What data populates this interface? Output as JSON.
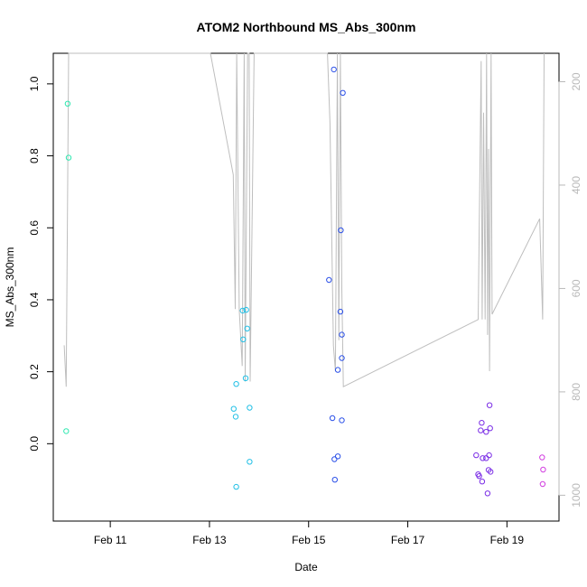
{
  "chart_data": {
    "type": "scatter",
    "title": "ATOM2 Northbound MS_Abs_300nm",
    "xlabel": "Date",
    "ylabel": "MS_Abs_300nm",
    "x_unit": "days in February",
    "xlim": [
      9.85,
      20.05
    ],
    "ylim": [
      -0.215,
      1.085
    ],
    "y2lim": [
      1050,
      145
    ],
    "x_ticks": [
      11,
      13,
      15,
      17,
      19
    ],
    "x_tick_labels": [
      "Feb 11",
      "Feb 13",
      "Feb 15",
      "Feb 17",
      "Feb 19"
    ],
    "y_ticks": [
      0.0,
      0.2,
      0.4,
      0.6,
      0.8,
      1.0
    ],
    "y_tick_labels": [
      "0.0",
      "0.2",
      "0.4",
      "0.6",
      "0.8",
      "1.0"
    ],
    "y2_ticks": [
      200,
      400,
      600,
      800,
      1000
    ],
    "y2_tick_labels": [
      "200",
      "400",
      "600",
      "800",
      "1000"
    ],
    "grid": false,
    "points": [
      {
        "x": 10.14,
        "y": 0.945,
        "color": "#2ee8b0"
      },
      {
        "x": 10.16,
        "y": 0.795,
        "color": "#2ee8b0"
      },
      {
        "x": 10.11,
        "y": 0.035,
        "color": "#2ee8b0"
      },
      {
        "x": 13.67,
        "y": 0.37,
        "color": "#22c0e6"
      },
      {
        "x": 13.74,
        "y": 0.372,
        "color": "#22c0e6"
      },
      {
        "x": 13.76,
        "y": 0.32,
        "color": "#22c0e6"
      },
      {
        "x": 13.68,
        "y": 0.29,
        "color": "#22c0e6"
      },
      {
        "x": 13.73,
        "y": 0.182,
        "color": "#22c0e6"
      },
      {
        "x": 13.54,
        "y": 0.166,
        "color": "#22c0e6"
      },
      {
        "x": 13.49,
        "y": 0.097,
        "color": "#22c0e6"
      },
      {
        "x": 13.81,
        "y": 0.1,
        "color": "#22c0e6"
      },
      {
        "x": 13.53,
        "y": 0.075,
        "color": "#22c0e6"
      },
      {
        "x": 13.81,
        "y": -0.05,
        "color": "#22c0e6"
      },
      {
        "x": 13.54,
        "y": -0.12,
        "color": "#22c0e6"
      },
      {
        "x": 15.51,
        "y": 1.04,
        "color": "#2b50e8"
      },
      {
        "x": 15.69,
        "y": 0.975,
        "color": "#2b50e8"
      },
      {
        "x": 15.65,
        "y": 0.593,
        "color": "#2b50e8"
      },
      {
        "x": 15.41,
        "y": 0.455,
        "color": "#2b50e8"
      },
      {
        "x": 15.64,
        "y": 0.367,
        "color": "#2b50e8"
      },
      {
        "x": 15.67,
        "y": 0.303,
        "color": "#2b50e8"
      },
      {
        "x": 15.67,
        "y": 0.238,
        "color": "#2b50e8"
      },
      {
        "x": 15.59,
        "y": 0.205,
        "color": "#2b50e8"
      },
      {
        "x": 15.48,
        "y": 0.071,
        "color": "#2b50e8"
      },
      {
        "x": 15.67,
        "y": 0.065,
        "color": "#2b50e8"
      },
      {
        "x": 15.59,
        "y": -0.035,
        "color": "#2b50e8"
      },
      {
        "x": 15.52,
        "y": -0.043,
        "color": "#2b50e8"
      },
      {
        "x": 15.53,
        "y": -0.1,
        "color": "#2b50e8"
      },
      {
        "x": 18.65,
        "y": 0.107,
        "color": "#7b2ee6"
      },
      {
        "x": 18.49,
        "y": 0.058,
        "color": "#7b2ee6"
      },
      {
        "x": 18.66,
        "y": 0.043,
        "color": "#7b2ee6"
      },
      {
        "x": 18.47,
        "y": 0.037,
        "color": "#7b2ee6"
      },
      {
        "x": 18.58,
        "y": 0.033,
        "color": "#7b2ee6"
      },
      {
        "x": 18.38,
        "y": -0.032,
        "color": "#7b2ee6"
      },
      {
        "x": 18.64,
        "y": -0.032,
        "color": "#7b2ee6"
      },
      {
        "x": 18.51,
        "y": -0.04,
        "color": "#7b2ee6"
      },
      {
        "x": 18.58,
        "y": -0.04,
        "color": "#7b2ee6"
      },
      {
        "x": 18.63,
        "y": -0.073,
        "color": "#7b2ee6"
      },
      {
        "x": 18.67,
        "y": -0.078,
        "color": "#7b2ee6"
      },
      {
        "x": 18.42,
        "y": -0.085,
        "color": "#7b2ee6"
      },
      {
        "x": 18.44,
        "y": -0.09,
        "color": "#7b2ee6"
      },
      {
        "x": 18.5,
        "y": -0.105,
        "color": "#7b2ee6"
      },
      {
        "x": 18.61,
        "y": -0.138,
        "color": "#7b2ee6"
      },
      {
        "x": 19.71,
        "y": -0.038,
        "color": "#d23ee0"
      },
      {
        "x": 19.73,
        "y": -0.072,
        "color": "#d23ee0"
      },
      {
        "x": 19.72,
        "y": -0.112,
        "color": "#d23ee0"
      }
    ],
    "line": {
      "color": "#bebebe",
      "points": [
        [
          10.07,
          710
        ],
        [
          10.11,
          790
        ],
        [
          10.16,
          145
        ],
        [
          10.2,
          140
        ],
        [
          10.5,
          140
        ],
        [
          11.0,
          140
        ],
        [
          12.0,
          140
        ],
        [
          13.02,
          140
        ],
        [
          13.48,
          380
        ],
        [
          13.52,
          640
        ],
        [
          13.55,
          145
        ],
        [
          13.6,
          640
        ],
        [
          13.66,
          750
        ],
        [
          13.7,
          145
        ],
        [
          13.72,
          780
        ],
        [
          13.77,
          145
        ],
        [
          13.8,
          145
        ],
        [
          13.82,
          780
        ],
        [
          13.9,
          145
        ],
        [
          15.38,
          145
        ],
        [
          15.43,
          280
        ],
        [
          15.5,
          710
        ],
        [
          15.54,
          760
        ],
        [
          15.58,
          145
        ],
        [
          15.61,
          700
        ],
        [
          15.64,
          145
        ],
        [
          15.67,
          600
        ],
        [
          15.7,
          790
        ],
        [
          18.42,
          660
        ],
        [
          18.48,
          160
        ],
        [
          18.5,
          660
        ],
        [
          18.53,
          260
        ],
        [
          18.56,
          660
        ],
        [
          18.59,
          140
        ],
        [
          18.61,
          690
        ],
        [
          18.63,
          330
        ],
        [
          18.65,
          760
        ],
        [
          18.68,
          145
        ],
        [
          18.7,
          650
        ],
        [
          19.66,
          465
        ],
        [
          19.72,
          660
        ],
        [
          19.75,
          145
        ]
      ]
    }
  }
}
